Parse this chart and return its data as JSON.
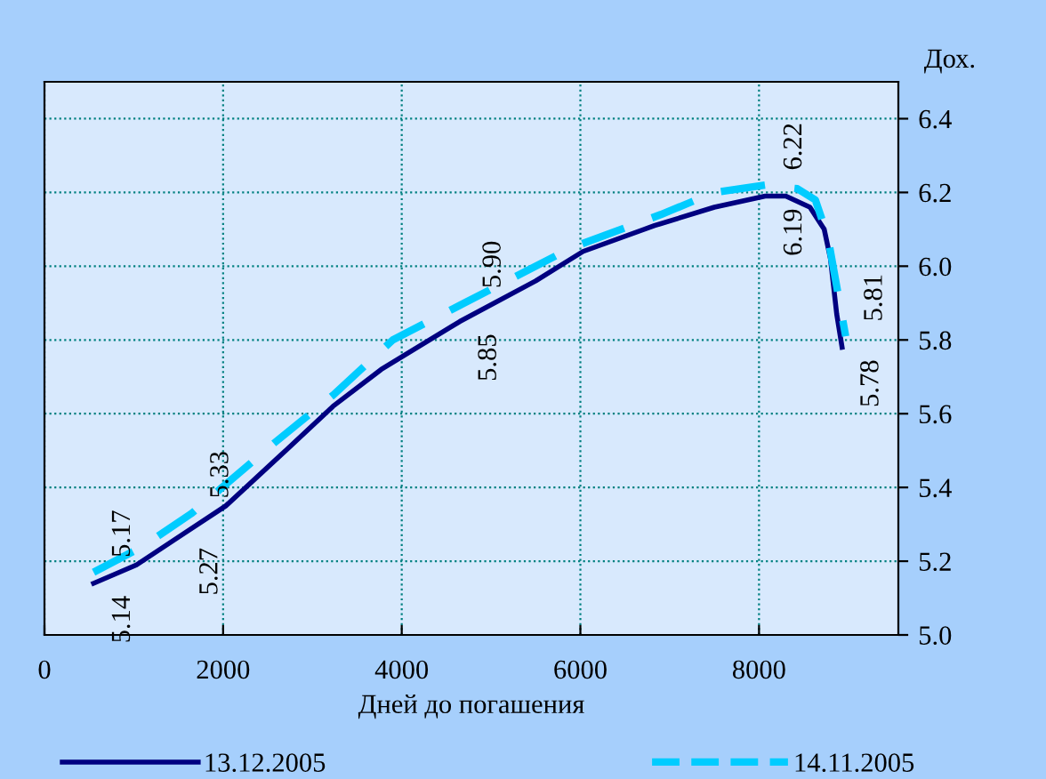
{
  "chart_data": {
    "type": "line",
    "xlabel": "Дней до погашения",
    "ylabel": "Дох.",
    "xlim": [
      0,
      9560
    ],
    "xticks": [
      0,
      2000,
      4000,
      6000,
      8000
    ],
    "ylim": [
      5.0,
      6.5
    ],
    "yticks": [
      {
        "value": 5.0,
        "label": "5.0"
      },
      {
        "value": 5.2,
        "label": "5.2"
      },
      {
        "value": 5.4,
        "label": "5.4"
      },
      {
        "value": 5.6,
        "label": "5.6"
      },
      {
        "value": 5.8,
        "label": "5.8"
      },
      {
        "value": 6.0,
        "label": "6.0"
      },
      {
        "value": 6.2,
        "label": "6.2"
      },
      {
        "value": 6.4,
        "label": "6.4"
      }
    ],
    "grid": true,
    "legend": "bottom",
    "marker": "none",
    "series": [
      {
        "name": "13.12.2005",
        "color": "#000080",
        "line_style": "solid",
        "x": [
          550,
          1030,
          1530,
          2030,
          2700,
          3230,
          3770,
          4650,
          5500,
          6030,
          6830,
          7500,
          8070,
          8300,
          8570,
          8730,
          8800,
          8870,
          8930
        ],
        "values": [
          5.14,
          5.19,
          5.27,
          5.35,
          5.5,
          5.62,
          5.72,
          5.85,
          5.96,
          6.04,
          6.11,
          6.16,
          6.19,
          6.19,
          6.16,
          6.1,
          6.02,
          5.87,
          5.78
        ]
      },
      {
        "name": "14.11.2005",
        "color": "#00ccff",
        "line_style": "dashed",
        "x": [
          550,
          1100,
          1650,
          2570,
          3230,
          3900,
          4700,
          5900,
          6900,
          7500,
          8070,
          8430,
          8630,
          8770,
          8970
        ],
        "values": [
          5.17,
          5.24,
          5.33,
          5.52,
          5.65,
          5.8,
          5.9,
          6.05,
          6.14,
          6.2,
          6.22,
          6.21,
          6.18,
          6.08,
          5.81
        ]
      }
    ],
    "annotations": [
      {
        "text": "5.14",
        "x": 550,
        "y": 5.14
      },
      {
        "text": "5.17",
        "x": 550,
        "y": 5.17
      },
      {
        "text": "5.27",
        "x": 1530,
        "y": 5.27
      },
      {
        "text": "5.33",
        "x": 1650,
        "y": 5.33
      },
      {
        "text": "5.85",
        "x": 4650,
        "y": 5.85
      },
      {
        "text": "5.90",
        "x": 4700,
        "y": 5.9
      },
      {
        "text": "6.19",
        "x": 8070,
        "y": 6.19
      },
      {
        "text": "6.22",
        "x": 8070,
        "y": 6.22
      },
      {
        "text": "5.81",
        "x": 8970,
        "y": 5.81
      },
      {
        "text": "5.78",
        "x": 8930,
        "y": 5.78
      }
    ]
  }
}
